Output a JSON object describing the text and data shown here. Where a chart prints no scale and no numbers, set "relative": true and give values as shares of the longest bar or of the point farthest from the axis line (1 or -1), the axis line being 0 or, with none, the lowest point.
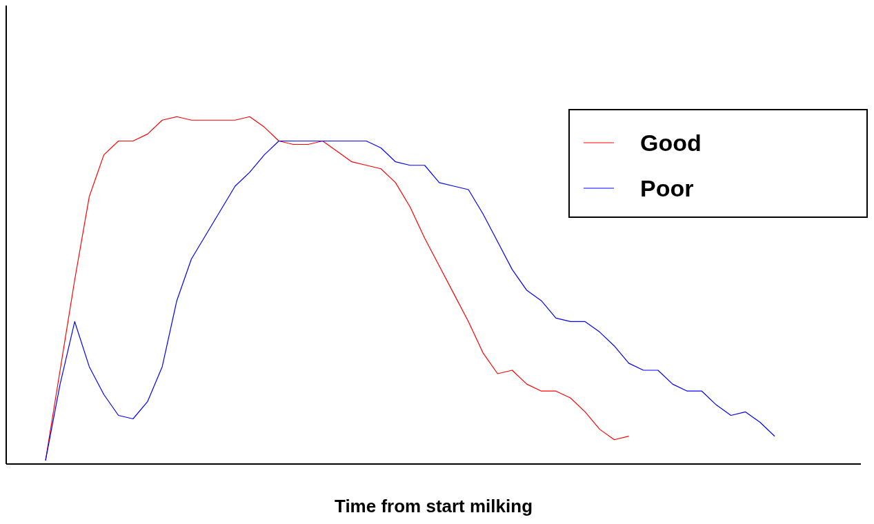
{
  "chart_data": {
    "type": "line",
    "xlabel": "Time from start milking",
    "relative": true,
    "legend": "top right",
    "marker": "none",
    "line_style": "solid",
    "grid": false,
    "categories": [
      null,
      null,
      null,
      null,
      null,
      null,
      null,
      null,
      null,
      null,
      null,
      null,
      null,
      null,
      null,
      null,
      null,
      null,
      null,
      null,
      null,
      null,
      null,
      null,
      null,
      null,
      null,
      null,
      null,
      null,
      null,
      null,
      null,
      null,
      null,
      null,
      null,
      null,
      null,
      null,
      null,
      null,
      null,
      null,
      null,
      null,
      null,
      null,
      null,
      null,
      null
    ],
    "series": [
      {
        "name": "Good",
        "color": "#ff0000",
        "values": [
          0.01,
          0.27,
          0.53,
          0.77,
          0.89,
          0.93,
          0.93,
          0.95,
          0.99,
          1.0,
          0.99,
          0.99,
          0.99,
          0.99,
          1.0,
          0.97,
          0.93,
          0.92,
          0.92,
          0.93,
          0.9,
          0.87,
          0.86,
          0.85,
          0.81,
          0.74,
          0.65,
          0.57,
          0.49,
          0.41,
          0.32,
          0.26,
          0.27,
          0.23,
          0.21,
          0.21,
          0.19,
          0.15,
          0.1,
          0.07,
          0.08,
          null,
          null,
          null,
          null,
          null,
          null,
          null,
          null,
          null,
          null
        ]
      },
      {
        "name": "Poor",
        "color": "#0000ff",
        "values": [
          0.01,
          0.23,
          0.41,
          0.28,
          0.2,
          0.14,
          0.13,
          0.18,
          0.28,
          0.47,
          0.59,
          0.66,
          0.73,
          0.8,
          0.84,
          0.89,
          0.93,
          0.93,
          0.93,
          0.93,
          0.93,
          0.93,
          0.93,
          0.91,
          0.87,
          0.86,
          0.86,
          0.81,
          0.8,
          0.79,
          0.72,
          0.64,
          0.56,
          0.5,
          0.47,
          0.42,
          0.41,
          0.41,
          0.38,
          0.34,
          0.29,
          0.27,
          0.27,
          0.23,
          0.21,
          0.21,
          0.17,
          0.14,
          0.15,
          0.12,
          0.08
        ]
      }
    ]
  }
}
